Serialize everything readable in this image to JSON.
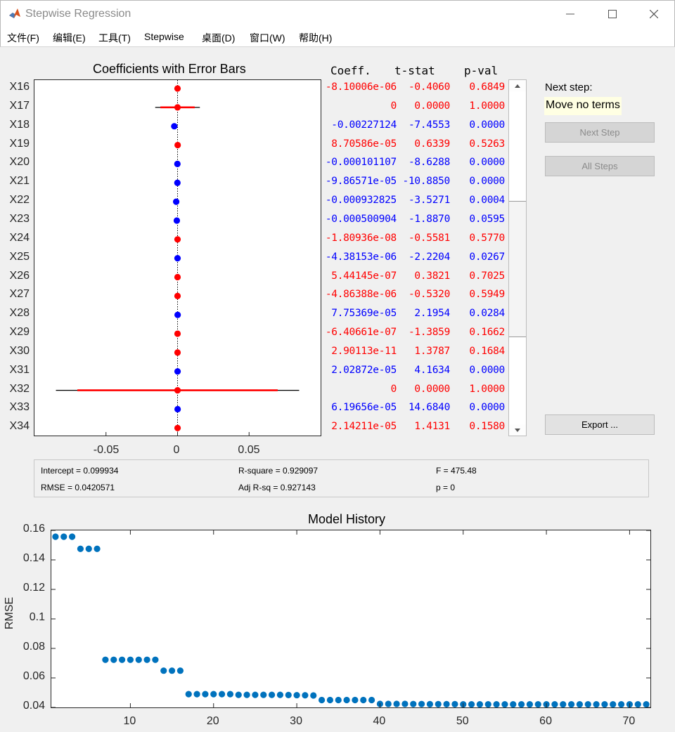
{
  "window": {
    "title": "Stepwise Regression",
    "controls": [
      "minimize",
      "maximize",
      "close"
    ]
  },
  "menu": [
    "文件(F)",
    "编辑(E)",
    "工具(T)",
    "Stepwise",
    "桌面(D)",
    "窗口(W)",
    "帮助(H)"
  ],
  "coef_plot": {
    "title": "Coefficients with Error Bars",
    "x_ticks": [
      "-0.05",
      "0",
      "0.05"
    ],
    "xlim": [
      -0.1,
      0.1
    ]
  },
  "table": {
    "headers": {
      "coeff": "Coeff.",
      "tstat": "t-stat",
      "pval": "p-val"
    },
    "rows": [
      {
        "label": "X16",
        "coeff": "-8.10006e-06",
        "tstat": "-0.4060",
        "pval": "0.6849",
        "in_model": false,
        "ci": 0.002
      },
      {
        "label": "X17",
        "coeff": "0",
        "tstat": "0.0000",
        "pval": "1.0000",
        "in_model": false,
        "ci": 0.012
      },
      {
        "label": "X18",
        "coeff": "-0.00227124",
        "tstat": "-7.4553",
        "pval": "0.0000",
        "in_model": true,
        "ci": 0.0008
      },
      {
        "label": "X19",
        "coeff": "8.70586e-05",
        "tstat": "0.6339",
        "pval": "0.5263",
        "in_model": false,
        "ci": 0.0005
      },
      {
        "label": "X20",
        "coeff": "-0.000101107",
        "tstat": "-8.6288",
        "pval": "0.0000",
        "in_model": true,
        "ci": 0.0002
      },
      {
        "label": "X21",
        "coeff": "-9.86571e-05",
        "tstat": "-10.8850",
        "pval": "0.0000",
        "in_model": true,
        "ci": 0.0002
      },
      {
        "label": "X22",
        "coeff": "-0.000932825",
        "tstat": "-3.5271",
        "pval": "0.0004",
        "in_model": true,
        "ci": 0.0005
      },
      {
        "label": "X23",
        "coeff": "-0.000500904",
        "tstat": "-1.8870",
        "pval": "0.0595",
        "in_model": true,
        "ci": 0.0005
      },
      {
        "label": "X24",
        "coeff": "-1.80936e-08",
        "tstat": "-0.5581",
        "pval": "0.5770",
        "in_model": false,
        "ci": 0.0001
      },
      {
        "label": "X25",
        "coeff": "-4.38153e-06",
        "tstat": "-2.2204",
        "pval": "0.0267",
        "in_model": true,
        "ci": 0.0001
      },
      {
        "label": "X26",
        "coeff": "5.44145e-07",
        "tstat": "0.3821",
        "pval": "0.7025",
        "in_model": false,
        "ci": 0.0001
      },
      {
        "label": "X27",
        "coeff": "-4.86388e-06",
        "tstat": "-0.5320",
        "pval": "0.5949",
        "in_model": false,
        "ci": 0.0001
      },
      {
        "label": "X28",
        "coeff": "7.75369e-05",
        "tstat": "2.1954",
        "pval": "0.0284",
        "in_model": true,
        "ci": 0.0001
      },
      {
        "label": "X29",
        "coeff": "-6.40661e-07",
        "tstat": "-1.3859",
        "pval": "0.1662",
        "in_model": false,
        "ci": 0.0001
      },
      {
        "label": "X30",
        "coeff": "2.90113e-11",
        "tstat": "1.3787",
        "pval": "0.1684",
        "in_model": false,
        "ci": 0.0001
      },
      {
        "label": "X31",
        "coeff": "2.02872e-05",
        "tstat": "4.1634",
        "pval": "0.0000",
        "in_model": true,
        "ci": 0.0001
      },
      {
        "label": "X32",
        "coeff": "0",
        "tstat": "0.0000",
        "pval": "1.0000",
        "in_model": false,
        "ci": 0.07,
        "ci90": 0.085
      },
      {
        "label": "X33",
        "coeff": "6.19656e-05",
        "tstat": "14.6840",
        "pval": "0.0000",
        "in_model": true,
        "ci": 0.0001
      },
      {
        "label": "X34",
        "coeff": "2.14211e-05",
        "tstat": "1.4131",
        "pval": "0.1580",
        "in_model": false,
        "ci": 0.0001
      }
    ]
  },
  "next_step": {
    "label": "Next step:",
    "value": "Move no terms",
    "next_button": "Next Step",
    "all_button": "All Steps",
    "export_button": "Export ..."
  },
  "stats": {
    "intercept": "Intercept = 0.099934",
    "r_square": "R-square = 0.929097",
    "f": "F = 475.48",
    "rmse": "RMSE = 0.0420571",
    "adj_r_sq": "Adj R-sq = 0.927143",
    "p": "p = 0"
  },
  "colors": {
    "in_model": "#0000ff",
    "out_model": "#ff0000",
    "history": "#0072bd"
  },
  "chart_data": {
    "type": "scatter",
    "title": "Model History",
    "xlabel": "",
    "ylabel": "RMSE",
    "xlim": [
      0.5,
      72.5
    ],
    "ylim": [
      0.04,
      0.16
    ],
    "x_ticks": [
      "10",
      "20",
      "30",
      "40",
      "50",
      "60",
      "70"
    ],
    "y_ticks": [
      "0.04",
      "0.06",
      "0.08",
      "0.1",
      "0.12",
      "0.14",
      "0.16"
    ],
    "x": [
      1,
      2,
      3,
      4,
      5,
      6,
      7,
      8,
      9,
      10,
      11,
      12,
      13,
      14,
      15,
      16,
      17,
      18,
      19,
      20,
      21,
      22,
      23,
      24,
      25,
      26,
      27,
      28,
      29,
      30,
      31,
      32,
      33,
      34,
      35,
      36,
      37,
      38,
      39,
      40,
      41,
      42,
      43,
      44,
      45,
      46,
      47,
      48,
      49,
      50,
      51,
      52,
      53,
      54,
      55,
      56,
      57,
      58,
      59,
      60,
      61,
      62,
      63,
      64,
      65,
      66,
      67,
      68,
      69,
      70,
      71,
      72
    ],
    "y": [
      0.1557,
      0.1557,
      0.1557,
      0.1475,
      0.1475,
      0.1475,
      0.0723,
      0.0723,
      0.0723,
      0.0723,
      0.0723,
      0.0723,
      0.0723,
      0.0649,
      0.0649,
      0.0649,
      0.049,
      0.049,
      0.049,
      0.049,
      0.049,
      0.049,
      0.0485,
      0.0485,
      0.0485,
      0.0485,
      0.0485,
      0.0485,
      0.0484,
      0.0483,
      0.0482,
      0.0481,
      0.045,
      0.045,
      0.045,
      0.045,
      0.045,
      0.045,
      0.045,
      0.0424,
      0.0424,
      0.0424,
      0.0424,
      0.0423,
      0.0423,
      0.0422,
      0.0422,
      0.0422,
      0.0422,
      0.0421,
      0.0421,
      0.0421,
      0.0421,
      0.0421,
      0.0421,
      0.0421,
      0.0421,
      0.0421,
      0.0421,
      0.0421,
      0.0421,
      0.0421,
      0.0421,
      0.0421,
      0.0421,
      0.0421,
      0.0421,
      0.0421,
      0.0421,
      0.0421,
      0.0421,
      0.0421
    ]
  }
}
